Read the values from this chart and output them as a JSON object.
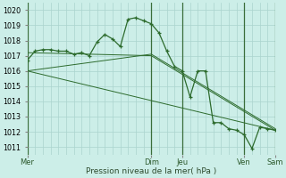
{
  "background_color": "#cceee8",
  "grid_color": "#aad4ce",
  "line_color": "#2d6b2d",
  "sep_color": "#3a6e3a",
  "xlabel": "Pression niveau de la mer( hPa )",
  "ylim": [
    1010.5,
    1020.5
  ],
  "ytick_min": 1011,
  "ytick_max": 1020,
  "xlim_hours": [
    0,
    192
  ],
  "day_labels": [
    "Mer",
    "Dim",
    "Jeu",
    "Ven",
    "Sam"
  ],
  "day_x_hours": [
    0,
    96,
    120,
    168,
    192
  ],
  "series1_x": [
    0,
    6,
    12,
    18,
    24,
    30,
    36,
    42,
    48,
    54,
    60,
    66,
    72,
    78,
    84,
    90,
    96,
    102,
    108,
    114,
    120,
    126,
    132,
    138,
    144,
    150,
    156,
    162,
    168,
    174,
    180,
    186,
    192
  ],
  "series1_y": [
    1016.7,
    1017.3,
    1017.4,
    1017.4,
    1017.3,
    1017.3,
    1017.1,
    1017.2,
    1017.0,
    1017.9,
    1018.4,
    1018.1,
    1017.6,
    1019.4,
    1019.5,
    1019.3,
    1019.1,
    1018.5,
    1017.3,
    1016.3,
    1016.0,
    1014.3,
    1016.0,
    1016.0,
    1012.6,
    1012.6,
    1012.2,
    1012.1,
    1011.8,
    1010.9,
    1012.3,
    1012.2,
    1012.1
  ],
  "series2_x": [
    0,
    192
  ],
  "series2_y": [
    1016.0,
    1012.1
  ],
  "series3_x": [
    0,
    96,
    192
  ],
  "series3_y": [
    1017.2,
    1017.0,
    1012.1
  ],
  "series4_x": [
    0,
    96,
    192
  ],
  "series4_y": [
    1016.0,
    1017.1,
    1012.2
  ]
}
